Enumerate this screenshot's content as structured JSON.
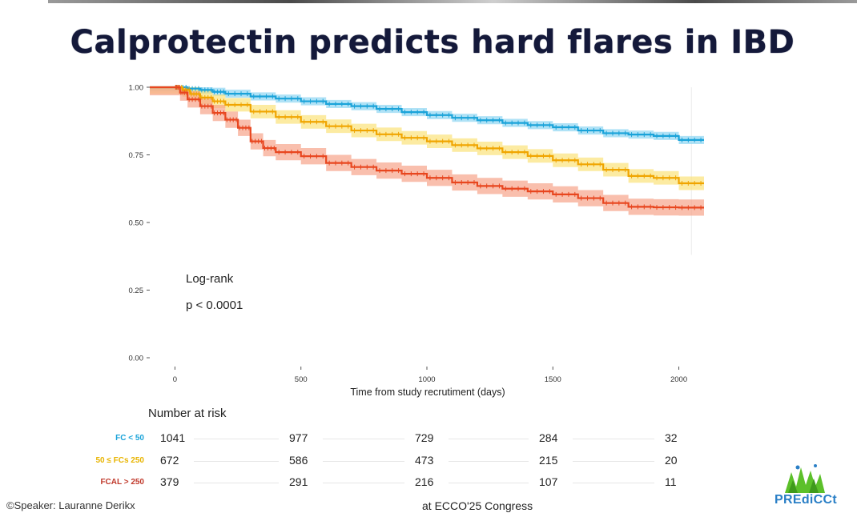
{
  "title": "Calprotectin predicts hard flares in IBD",
  "logrank": {
    "line1": "Log-rank",
    "line2": "p < 0.0001"
  },
  "risk_table": {
    "heading": "Number at risk",
    "rows": [
      {
        "label": "FC < 50",
        "color": "#1aa3d9",
        "values": [
          1041,
          977,
          729,
          284,
          32
        ]
      },
      {
        "label": "50 ≤ FCs 250",
        "color": "#e8b400",
        "values": [
          672,
          586,
          473,
          215,
          20
        ]
      },
      {
        "label": "FCAL > 250",
        "color": "#c0392b",
        "values": [
          379,
          291,
          216,
          107,
          11
        ]
      }
    ]
  },
  "footer": {
    "left": "©Speaker: Lauranne Derikx",
    "middle": "at ECCO'25 Congress"
  },
  "logo": {
    "text": "PREdiCCt",
    "color": "#2a7fc6",
    "grass_color": "#5cc02a"
  },
  "chart_data": {
    "type": "line",
    "title": "",
    "xlabel": "Time from study recrutiment (days)",
    "ylabel": "",
    "xlim": [
      -100,
      2100
    ],
    "ylim": [
      0,
      1
    ],
    "x_ticks": [
      0,
      500,
      1000,
      1500,
      2000
    ],
    "y_ticks": [
      0.0,
      0.25,
      0.5,
      0.75,
      1.0
    ],
    "y_tick_labels": [
      "0.00",
      "0.25",
      "0.50",
      "0.75",
      "1.00"
    ],
    "grid": false,
    "legend": "none",
    "series": [
      {
        "color": "#1aa3d9",
        "band_color": "#8fd6f2",
        "ci_half_width": 0.015,
        "x": [
          -100,
          0,
          50,
          100,
          150,
          200,
          300,
          400,
          500,
          600,
          700,
          800,
          900,
          1000,
          1100,
          1200,
          1300,
          1400,
          1500,
          1600,
          1700,
          1800,
          1900,
          2000,
          2100
        ],
        "y": [
          1.0,
          1.0,
          0.995,
          0.99,
          0.983,
          0.976,
          0.966,
          0.958,
          0.948,
          0.938,
          0.93,
          0.92,
          0.908,
          0.897,
          0.887,
          0.878,
          0.868,
          0.86,
          0.852,
          0.84,
          0.83,
          0.825,
          0.82,
          0.805,
          0.805
        ]
      },
      {
        "color": "#f0a500",
        "band_color": "#fbe37a",
        "ci_half_width": 0.025,
        "x": [
          -100,
          0,
          30,
          60,
          100,
          150,
          200,
          300,
          400,
          500,
          600,
          700,
          800,
          900,
          1000,
          1100,
          1200,
          1300,
          1400,
          1500,
          1600,
          1700,
          1800,
          1900,
          2000,
          2100
        ],
        "y": [
          1.0,
          1.0,
          0.99,
          0.975,
          0.962,
          0.948,
          0.935,
          0.91,
          0.89,
          0.872,
          0.856,
          0.84,
          0.826,
          0.813,
          0.8,
          0.786,
          0.774,
          0.76,
          0.746,
          0.73,
          0.715,
          0.695,
          0.672,
          0.665,
          0.645,
          0.645
        ]
      },
      {
        "color": "#e8461f",
        "band_color": "#f6a48a",
        "ci_half_width": 0.03,
        "x": [
          -100,
          0,
          20,
          50,
          100,
          150,
          200,
          250,
          300,
          350,
          400,
          500,
          600,
          700,
          800,
          900,
          1000,
          1100,
          1200,
          1300,
          1400,
          1500,
          1600,
          1700,
          1800,
          1900,
          2000,
          2100
        ],
        "y": [
          1.0,
          1.0,
          0.98,
          0.955,
          0.93,
          0.905,
          0.88,
          0.85,
          0.8,
          0.775,
          0.76,
          0.745,
          0.72,
          0.705,
          0.692,
          0.68,
          0.665,
          0.648,
          0.635,
          0.625,
          0.615,
          0.604,
          0.59,
          0.572,
          0.558,
          0.556,
          0.555,
          0.555
        ]
      }
    ]
  }
}
